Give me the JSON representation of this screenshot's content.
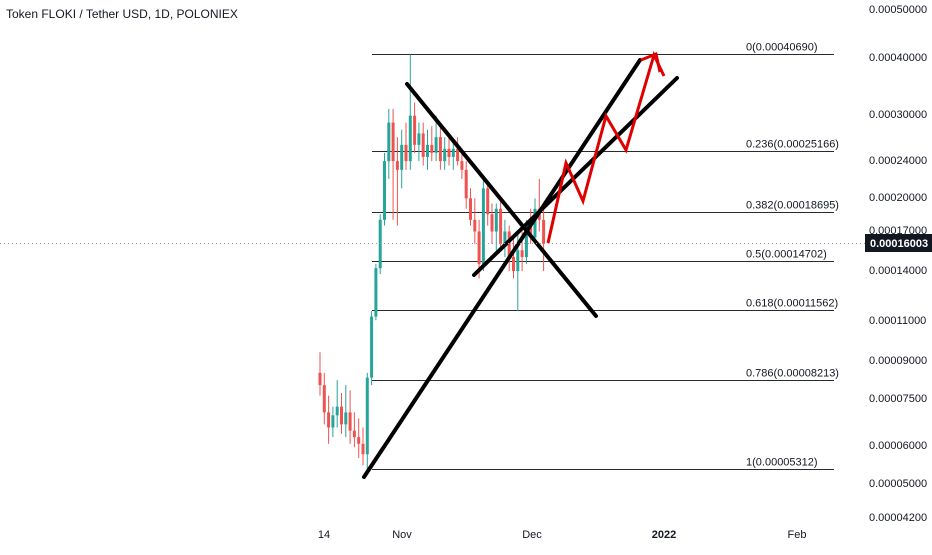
{
  "chart_data": {
    "type": "candlestick",
    "title": "Token FLOKI / Tether USD, 1D, POLONIEX",
    "y_scale": "log",
    "ylim": [
      4.1e-05,
      5e-05
    ],
    "y_ticks": [
      "0.00050000",
      "0.00040000",
      "0.00030000",
      "0.00024000",
      "0.00020000",
      "0.00017000",
      "0.00014000",
      "0.00011000",
      "0.00009000",
      "0.00007500",
      "0.00006000",
      "0.00005000",
      "0.00004200"
    ],
    "x_ticks": [
      "14",
      "Nov",
      "Dec",
      "2022",
      "Feb"
    ],
    "current_price": "0.00016003",
    "fib_levels": [
      {
        "label": "0(0.00040690)",
        "value": 0.0004069
      },
      {
        "label": "0.236(0.00025166)",
        "value": 0.00025166
      },
      {
        "label": "0.382(0.00018695)",
        "value": 0.00018695
      },
      {
        "label": "0.5(0.00014702)",
        "value": 0.00014702
      },
      {
        "label": "0.618(0.00011562)",
        "value": 0.00011562
      },
      {
        "label": "0.786(0.00008213)",
        "value": 8.213e-05
      },
      {
        "label": "1(0.00005312)",
        "value": 5.312e-05
      }
    ],
    "candles": [
      {
        "o": 8.5e-05,
        "h": 9.4e-05,
        "l": 7.6e-05,
        "c": 8e-05
      },
      {
        "o": 8e-05,
        "h": 8.5e-05,
        "l": 6.6e-05,
        "c": 7e-05
      },
      {
        "o": 7e-05,
        "h": 7.6e-05,
        "l": 6e-05,
        "c": 6.5e-05
      },
      {
        "o": 6.5e-05,
        "h": 7.2e-05,
        "l": 6.2e-05,
        "c": 6.9e-05
      },
      {
        "o": 6.9e-05,
        "h": 8.2e-05,
        "l": 6.5e-05,
        "c": 7.2e-05
      },
      {
        "o": 7.2e-05,
        "h": 7.7e-05,
        "l": 6.3e-05,
        "c": 6.6e-05
      },
      {
        "o": 6.6e-05,
        "h": 8e-05,
        "l": 6.2e-05,
        "c": 7e-05
      },
      {
        "o": 7e-05,
        "h": 7.8e-05,
        "l": 6e-05,
        "c": 6.4e-05
      },
      {
        "o": 6.4e-05,
        "h": 7e-05,
        "l": 5.9e-05,
        "c": 6.2e-05
      },
      {
        "o": 6.2e-05,
        "h": 6.8e-05,
        "l": 5.6e-05,
        "c": 6e-05
      },
      {
        "o": 6e-05,
        "h": 6.5e-05,
        "l": 5.4e-05,
        "c": 5.7e-05
      },
      {
        "o": 5.7e-05,
        "h": 8.5e-05,
        "l": 5.3e-05,
        "c": 8.3e-05
      },
      {
        "o": 8.3e-05,
        "h": 0.000115,
        "l": 8e-05,
        "c": 0.000112
      },
      {
        "o": 0.000112,
        "h": 0.000145,
        "l": 0.00011,
        "c": 0.000142
      },
      {
        "o": 0.000142,
        "h": 0.000185,
        "l": 0.000138,
        "c": 0.00018
      },
      {
        "o": 0.00018,
        "h": 0.00025,
        "l": 0.000175,
        "c": 0.00024
      },
      {
        "o": 0.00024,
        "h": 0.00031,
        "l": 0.00022,
        "c": 0.00029
      },
      {
        "o": 0.00029,
        "h": 0.00031,
        "l": 0.00018,
        "c": 0.00024
      },
      {
        "o": 0.00024,
        "h": 0.00027,
        "l": 0.000175,
        "c": 0.00023
      },
      {
        "o": 0.00023,
        "h": 0.00028,
        "l": 0.00021,
        "c": 0.00026
      },
      {
        "o": 0.00026,
        "h": 0.00029,
        "l": 0.00023,
        "c": 0.00024
      },
      {
        "o": 0.00024,
        "h": 0.000405,
        "l": 0.00023,
        "c": 0.0003
      },
      {
        "o": 0.0003,
        "h": 0.00032,
        "l": 0.00025,
        "c": 0.00026
      },
      {
        "o": 0.00026,
        "h": 0.00029,
        "l": 0.00024,
        "c": 0.000275
      },
      {
        "o": 0.000275,
        "h": 0.00029,
        "l": 0.000235,
        "c": 0.000245
      },
      {
        "o": 0.000245,
        "h": 0.00028,
        "l": 0.00023,
        "c": 0.00026
      },
      {
        "o": 0.00026,
        "h": 0.000285,
        "l": 0.00024,
        "c": 0.00025
      },
      {
        "o": 0.00025,
        "h": 0.0003,
        "l": 0.00024,
        "c": 0.00027
      },
      {
        "o": 0.00027,
        "h": 0.000285,
        "l": 0.00023,
        "c": 0.00024
      },
      {
        "o": 0.00024,
        "h": 0.00027,
        "l": 0.00023,
        "c": 0.000255
      },
      {
        "o": 0.000255,
        "h": 0.000275,
        "l": 0.000235,
        "c": 0.000245
      },
      {
        "o": 0.000245,
        "h": 0.000265,
        "l": 0.00023,
        "c": 0.000255
      },
      {
        "o": 0.000255,
        "h": 0.00027,
        "l": 0.000235,
        "c": 0.00024
      },
      {
        "o": 0.00024,
        "h": 0.00025,
        "l": 0.00022,
        "c": 0.00023
      },
      {
        "o": 0.00023,
        "h": 0.00024,
        "l": 0.00019,
        "c": 0.0002
      },
      {
        "o": 0.0002,
        "h": 0.00021,
        "l": 0.000175,
        "c": 0.00018
      },
      {
        "o": 0.00018,
        "h": 0.0002,
        "l": 0.00016,
        "c": 0.00017
      },
      {
        "o": 0.00017,
        "h": 0.00018,
        "l": 0.000135,
        "c": 0.000145
      },
      {
        "o": 0.000145,
        "h": 0.00022,
        "l": 0.00014,
        "c": 0.00021
      },
      {
        "o": 0.00021,
        "h": 0.000215,
        "l": 0.000175,
        "c": 0.000185
      },
      {
        "o": 0.000185,
        "h": 0.000195,
        "l": 0.00016,
        "c": 0.00017
      },
      {
        "o": 0.00017,
        "h": 0.000195,
        "l": 0.000155,
        "c": 0.00019
      },
      {
        "o": 0.00019,
        "h": 0.0002,
        "l": 0.000155,
        "c": 0.00016
      },
      {
        "o": 0.00016,
        "h": 0.00018,
        "l": 0.00015,
        "c": 0.00017
      },
      {
        "o": 0.00017,
        "h": 0.000175,
        "l": 0.00014,
        "c": 0.00015
      },
      {
        "o": 0.00015,
        "h": 0.000165,
        "l": 0.000135,
        "c": 0.00014
      },
      {
        "o": 0.00014,
        "h": 0.00017,
        "l": 0.000115,
        "c": 0.000155
      },
      {
        "o": 0.000155,
        "h": 0.00017,
        "l": 0.00014,
        "c": 0.00015
      },
      {
        "o": 0.00015,
        "h": 0.00018,
        "l": 0.000145,
        "c": 0.000175
      },
      {
        "o": 0.000175,
        "h": 0.00019,
        "l": 0.00016,
        "c": 0.000165
      },
      {
        "o": 0.000165,
        "h": 0.0002,
        "l": 0.00016,
        "c": 0.00019
      },
      {
        "o": 0.00019,
        "h": 0.00022,
        "l": 0.00017,
        "c": 0.00018
      },
      {
        "o": 0.00018,
        "h": 0.000195,
        "l": 0.00014,
        "c": 0.00016
      }
    ],
    "colors": {
      "up": "#26a69a",
      "down": "#ef5350",
      "wick": "#555555",
      "drawing": "#000000",
      "projection": "#e00000",
      "fib": "#2a2a2a",
      "price_tag": "#131722"
    }
  }
}
